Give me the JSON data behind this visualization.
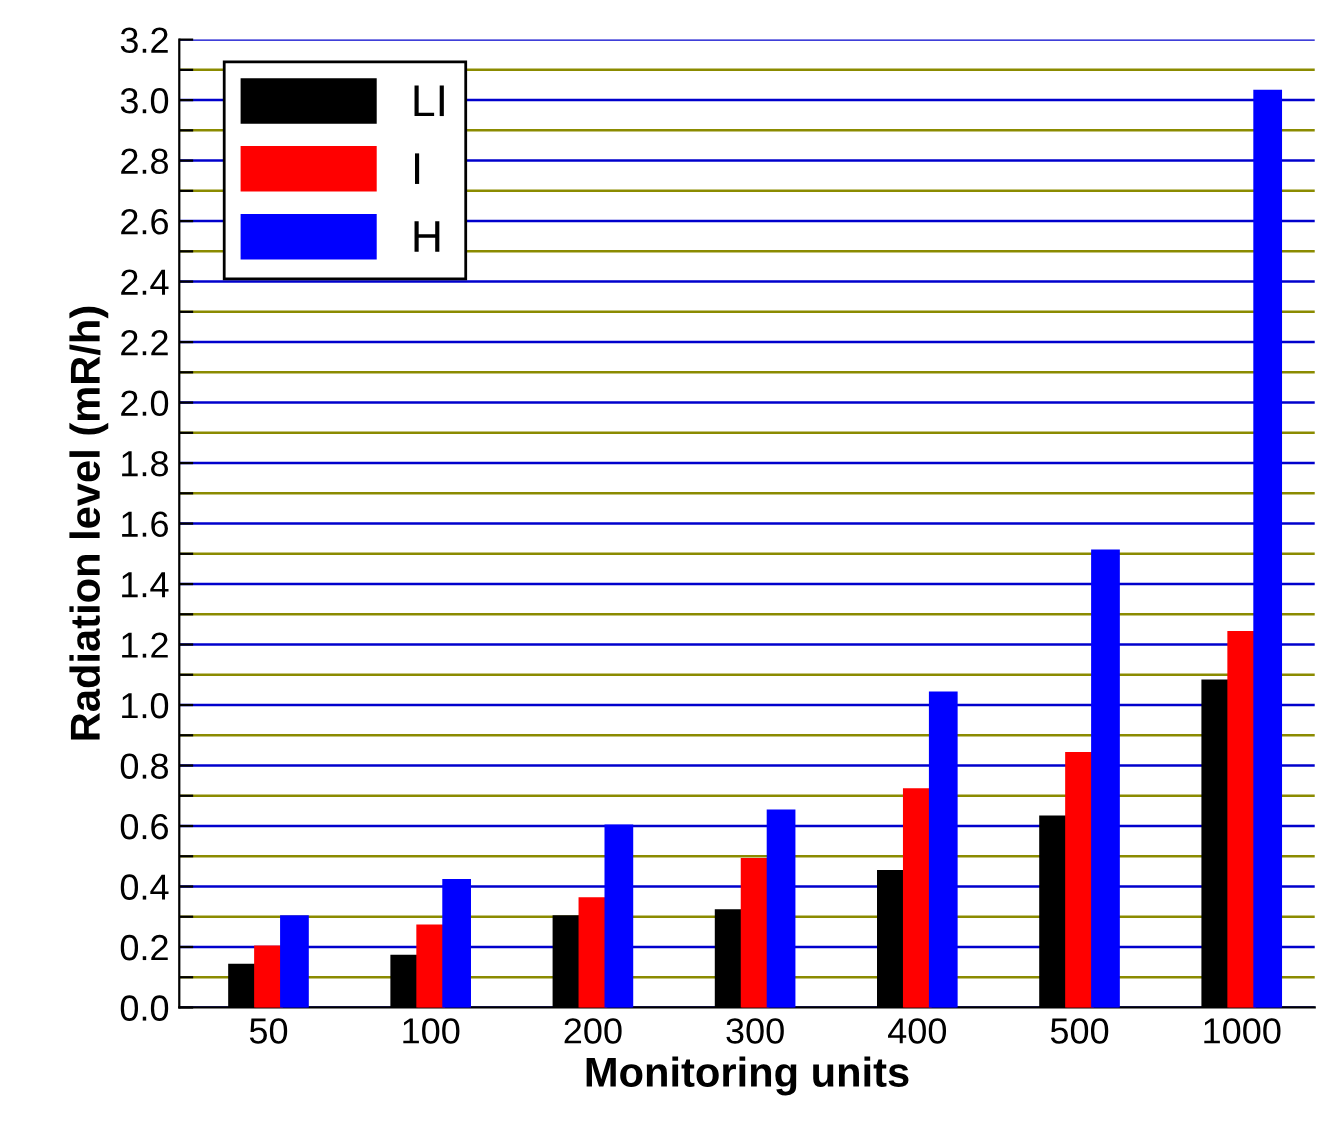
{
  "chart_data": {
    "type": "bar",
    "xlabel": "Monitoring units",
    "ylabel": "Radiation level (mR/h)",
    "categories": [
      "50",
      "100",
      "200",
      "300",
      "400",
      "500",
      "1000"
    ],
    "series": [
      {
        "name": "LI",
        "color": "#000000",
        "values": [
          0.14,
          0.17,
          0.3,
          0.32,
          0.45,
          0.63,
          1.08
        ]
      },
      {
        "name": "I",
        "color": "#ff0000",
        "values": [
          0.2,
          0.27,
          0.36,
          0.49,
          0.72,
          0.84,
          1.24
        ]
      },
      {
        "name": "H",
        "color": "#0000ff",
        "values": [
          0.3,
          0.42,
          0.6,
          0.65,
          1.04,
          1.51,
          3.03
        ]
      }
    ],
    "ylim": [
      0,
      3.2
    ],
    "yticks": [
      {
        "value": 0,
        "label": "0.0"
      },
      {
        "value": 0.1,
        "label": null
      },
      0.2,
      {
        "value": 0.3,
        "label": null
      },
      0.4,
      {
        "value": 0.5,
        "label": null
      },
      0.6,
      {
        "value": 0.7,
        "label": null
      },
      0.8,
      {
        "value": 0.9,
        "label": null
      },
      {
        "value": 1,
        "label": "1.0"
      },
      {
        "value": 1.1,
        "label": null
      },
      1.2,
      {
        "value": 1.3,
        "label": null
      },
      1.4,
      {
        "value": 1.5,
        "label": null
      },
      1.6,
      {
        "value": 1.7,
        "label": null
      },
      1.8,
      {
        "value": 1.9,
        "label": null
      },
      {
        "value": 2,
        "label": "2.0"
      },
      {
        "value": 2.1,
        "label": null
      },
      2.2,
      {
        "value": 2.3,
        "label": null
      },
      2.4,
      {
        "value": 2.5,
        "label": null
      },
      2.6,
      {
        "value": 2.7,
        "label": null
      },
      2.8,
      {
        "value": 2.9,
        "label": null
      },
      {
        "value": 3,
        "label": "3.0"
      },
      {
        "value": 3.1,
        "label": null
      },
      3.2
    ],
    "grid": "y",
    "legend": "top left"
  }
}
